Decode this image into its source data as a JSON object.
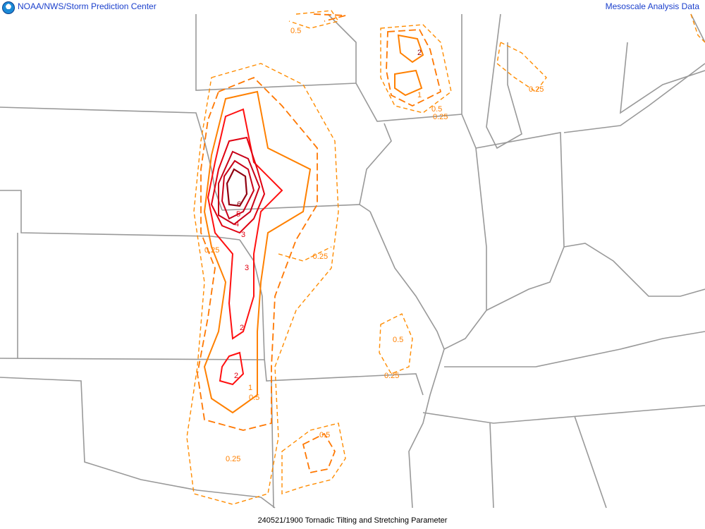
{
  "header": {
    "left_title": "NOAA/NWS/Storm Prediction Center",
    "right_title": "Mesoscale Analysis Data",
    "logo": "noaa-logo"
  },
  "footer": {
    "caption": "240521/1900 Tornadic Tilting and Stretching Parameter"
  },
  "contour_labels": [
    "0.5",
    "2",
    "1",
    "0.5",
    "0.25",
    "0.25",
    "6",
    "5",
    "4",
    "3",
    "0.25",
    "3",
    "-0.25",
    "2",
    "0.5",
    "2",
    "1",
    "0.5",
    "0.25",
    "0.5",
    "0.25"
  ],
  "contour_levels": [
    0.25,
    0.5,
    1,
    2,
    3,
    4,
    5,
    6
  ],
  "colors": {
    "low_contours": "#ff8000",
    "mid_contours": "#ff1010",
    "high_contours": "#900010",
    "borders": "#999999",
    "header_text": "#1a3fcc"
  }
}
